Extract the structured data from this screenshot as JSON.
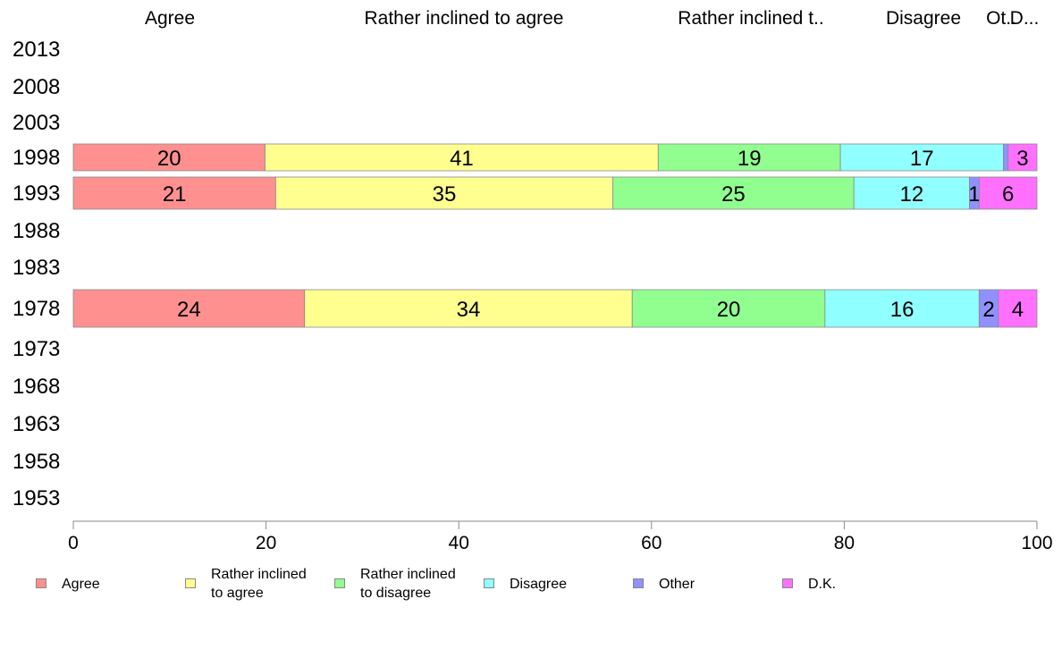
{
  "chart_data": {
    "type": "bar",
    "orientation": "horizontal",
    "stacked": true,
    "categories": [
      "2013",
      "2008",
      "2003",
      "1998",
      "1993",
      "1988",
      "1983",
      "1978",
      "1973",
      "1968",
      "1963",
      "1958",
      "1953"
    ],
    "series": [
      {
        "name": "Agree",
        "color": "#ff9090",
        "values": [
          null,
          null,
          null,
          20,
          21,
          null,
          null,
          24,
          null,
          null,
          null,
          null,
          null
        ]
      },
      {
        "name": "Rather inclined to agree",
        "color": "#ffff90",
        "values": [
          null,
          null,
          null,
          41,
          35,
          null,
          null,
          34,
          null,
          null,
          null,
          null,
          null
        ]
      },
      {
        "name": "Rather inclined to disagree",
        "color": "#90ff90",
        "values": [
          null,
          null,
          null,
          19,
          25,
          null,
          null,
          20,
          null,
          null,
          null,
          null,
          null
        ]
      },
      {
        "name": "Disagree",
        "color": "#90ffff",
        "values": [
          null,
          null,
          null,
          17,
          12,
          null,
          null,
          16,
          null,
          null,
          null,
          null,
          null
        ]
      },
      {
        "name": "Other",
        "color": "#9090ff",
        "values": [
          null,
          null,
          null,
          0.5,
          1,
          null,
          null,
          2,
          null,
          null,
          null,
          null,
          null
        ]
      },
      {
        "name": "D.K.",
        "color": "#ff70ff",
        "values": [
          null,
          null,
          null,
          3,
          6,
          null,
          null,
          4,
          null,
          null,
          null,
          null,
          null
        ]
      }
    ],
    "top_labels": [
      "Agree",
      "Rather inclined to agree",
      "Rather inclined t..",
      "Disagree",
      "Ot..",
      "D..."
    ],
    "legend_labels": [
      "Agree",
      "Rather inclined\nto agree",
      "Rather inclined\nto disagree",
      "Disagree",
      "Other",
      "D.K."
    ],
    "xlim": [
      0,
      100
    ],
    "xticks": [
      "0",
      "20",
      "40",
      "60",
      "80",
      "100"
    ],
    "grid": false,
    "legend_position": "bottom"
  }
}
